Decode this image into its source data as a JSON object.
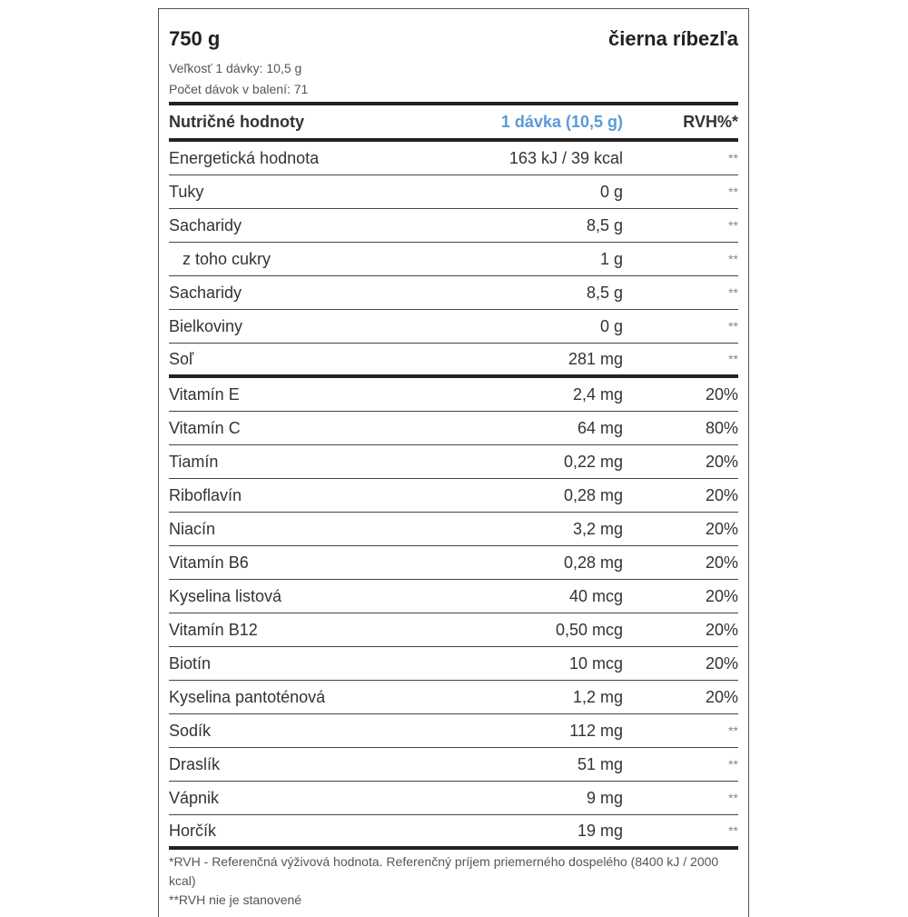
{
  "header": {
    "weight": "750 g",
    "flavor": "čierna ríbezľa",
    "serving_size": "Veľkosť 1 dávky: 10,5 g",
    "servings": "Počet dávok v balení: 71"
  },
  "table": {
    "columns": [
      "Nutričné hodnoty",
      "1 dávka (10,5 g)",
      "RVH%*"
    ],
    "rows": [
      {
        "name": "Energetická hodnota",
        "value": "163 kJ / 39 kcal",
        "rvh": "**"
      },
      {
        "name": "Tuky",
        "value": "0 g",
        "rvh": "**"
      },
      {
        "name": "Sacharidy",
        "value": "8,5 g",
        "rvh": "**"
      },
      {
        "name": "z toho cukry",
        "value": "1 g",
        "rvh": "**",
        "indent": true
      },
      {
        "name": "Sacharidy",
        "value": "8,5 g",
        "rvh": "**"
      },
      {
        "name": "Bielkoviny",
        "value": "0 g",
        "rvh": "**"
      },
      {
        "name": "Soľ",
        "value": "281 mg",
        "rvh": "**"
      },
      {
        "name": "Vitamín E",
        "value": "2,4 mg",
        "rvh": "20%"
      },
      {
        "name": "Vitamín C",
        "value": "64 mg",
        "rvh": "80%"
      },
      {
        "name": "Tiamín",
        "value": "0,22 mg",
        "rvh": "20%"
      },
      {
        "name": "Riboflavín",
        "value": "0,28 mg",
        "rvh": "20%"
      },
      {
        "name": "Niacín",
        "value": "3,2 mg",
        "rvh": "20%"
      },
      {
        "name": "Vitamín B6",
        "value": "0,28 mg",
        "rvh": "20%"
      },
      {
        "name": "Kyselina listová",
        "value": "40 mcg",
        "rvh": "20%"
      },
      {
        "name": "Vitamín B12",
        "value": "0,50 mcg",
        "rvh": "20%"
      },
      {
        "name": "Biotín",
        "value": "10 mcg",
        "rvh": "20%"
      },
      {
        "name": "Kyselina pantoténová",
        "value": "1,2 mg",
        "rvh": "20%"
      },
      {
        "name": "Sodík",
        "value": "112 mg",
        "rvh": "**"
      },
      {
        "name": "Draslík",
        "value": "51 mg",
        "rvh": "**"
      },
      {
        "name": "Vápnik",
        "value": "9 mg",
        "rvh": "**"
      },
      {
        "name": "Horčík",
        "value": "19 mg",
        "rvh": "**"
      }
    ]
  },
  "footnotes": [
    "*RVH - Referenčná výživová hodnota. Referenčný príjem priemerného dospelého (8400 kJ / 2000 kcal)",
    "**RVH nie je stanovené"
  ],
  "colors": {
    "accent": "#5b9bd5"
  }
}
